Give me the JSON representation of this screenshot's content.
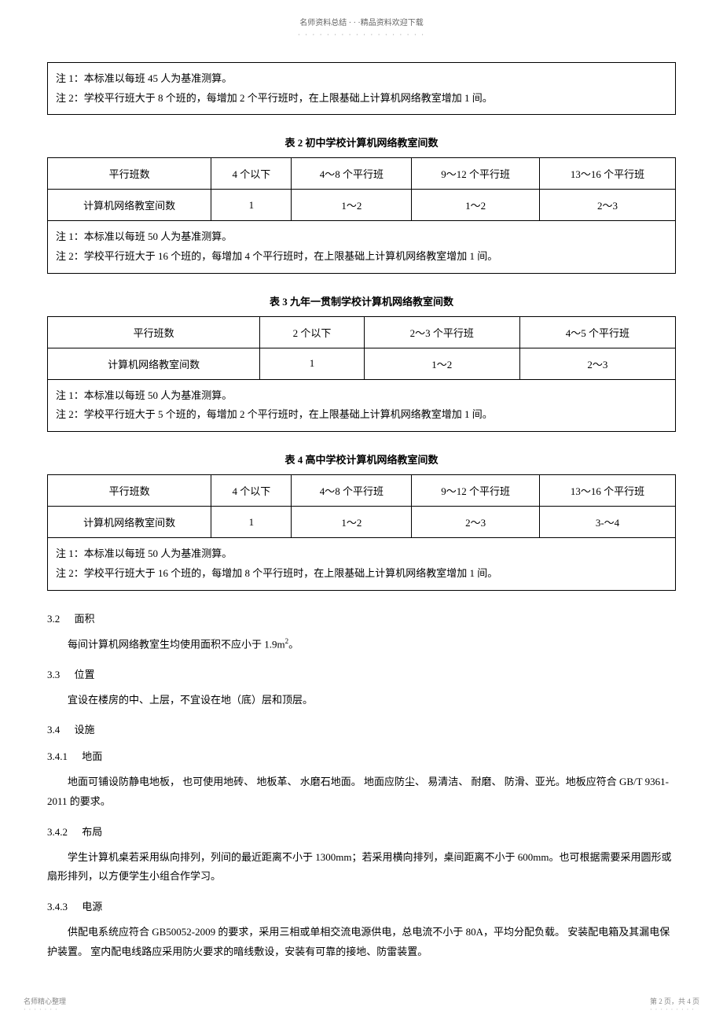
{
  "header": {
    "title": "名师资料总结 · · ·精品资料欢迎下载",
    "dots": "· · · · · · · · · · · · · · · · · ·"
  },
  "topNoteBox": {
    "line1": "注 1：本标准以每班   45 人为基准测算。",
    "line2": "注 2：学校平行班大于   8 个班的，每增加   2 个平行班时，在上限基础上计算机网络教室增加        1 间。"
  },
  "table2": {
    "title": "表 2    初中学校计算机网络教室间数",
    "headers": [
      "平行班数",
      "4 个以下",
      "4～8 个平行班",
      "9～12 个平行班",
      "13～16 个平行班"
    ],
    "row": [
      "计算机网络教室间数",
      "1",
      "1～2",
      "1～2",
      "2～3"
    ],
    "note": "注 1：本标准以每班   50 人为基准测算。\n注 2：学校平行班大于   16 个班的，每增加   4 个平行班时，在上限基础上计算机网络教室增加        1 间。"
  },
  "table3": {
    "title": "表 3    九年一贯制学校计算机网络教室间数",
    "headers": [
      "平行班数",
      "2 个以下",
      "2～3 个平行班",
      "4～5 个平行班"
    ],
    "row": [
      "计算机网络教室间数",
      "1",
      "1～2",
      "2～3"
    ],
    "note": "注 1：本标准以每班   50 人为基准测算。\n注 2：学校平行班大于   5 个班的，每增加   2 个平行班时，在上限基础上计算机网络教室增加        1 间。"
  },
  "table4": {
    "title": "表 4    高中学校计算机网络教室间数",
    "headers": [
      "平行班数",
      "4 个以下",
      "4～8 个平行班",
      "9～12 个平行班",
      "13～16 个平行班"
    ],
    "row": [
      "计算机网络教室间数",
      "1",
      "1～2",
      "2～3",
      "3-～4"
    ],
    "note": "注 1：本标准以每班   50 人为基准测算。\n注 2：学校平行班大于   16 个班的，每增加   8 个平行班时，在上限基础上计算机网络教室增加        1 间。"
  },
  "sections": {
    "s32": {
      "num": "3.2",
      "title": "面积",
      "text": "每间计算机网络教室生均使用面积不应小于        1.9m"
    },
    "s33": {
      "num": "3.3",
      "title": "位置",
      "text": "宜设在楼房的中、上层，不宜设在地（底）层和顶层。"
    },
    "s34": {
      "num": "3.4",
      "title": "设施"
    },
    "s341": {
      "num": "3.4.1",
      "title": "地面",
      "text": "地面可铺设防静电地板，  也可使用地砖、 地板革、 水磨石地面。 地面应防尘、 易清洁、 耐磨、 防滑、亚光。地板应符合    GB/T 9361-2011   的要求。"
    },
    "s342": {
      "num": "3.4.2",
      "title": "布局",
      "text": "学生计算机桌若采用纵向排列，列间的最近距离不小于           1300mm；若采用横向排列，桌间距离不小于 600mm。也可根据需要采用圆形或扇形排列，以方便学生小组合作学习。"
    },
    "s343": {
      "num": "3.4.3",
      "title": "电源",
      "text": "供配电系统应符合    GB50052-2009 的要求，采用三相或单相交流电源供电，总电流不小于        80A，平均分配负载。 安装配电箱及其漏电保护装置。   室内配电线路应采用防火要求的暗线敷设，安装有可靠的接地、防雷装置。"
    }
  },
  "footer": {
    "left": "名师精心整理",
    "leftDots": "· · · · · · ·",
    "right": "第 2 页，共 4 页",
    "rightDots": "· · · · · · · · ·"
  },
  "superscript": "2",
  "periodEnd": "。"
}
